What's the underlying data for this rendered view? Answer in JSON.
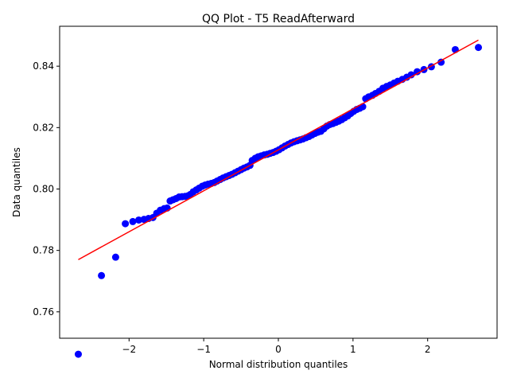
{
  "chart_data": {
    "type": "scatter",
    "title": "QQ Plot - T5 ReadAfterward",
    "xlabel": "Normal distribution quantiles",
    "ylabel": "Data quantiles",
    "xlim": [
      -2.93,
      2.93
    ],
    "ylim": [
      0.7514,
      0.853
    ],
    "xticks": [
      -2,
      -1,
      0,
      1,
      2
    ],
    "yticks": [
      0.76,
      0.78,
      0.8,
      0.82,
      0.84
    ],
    "ytick_labels": [
      "0.76",
      "0.78",
      "0.80",
      "0.82",
      "0.84"
    ],
    "grid": false,
    "legend": "none",
    "point_color": "#0000ff",
    "line_color": "#ff0000",
    "fit_line": {
      "x": [
        -2.68,
        2.68
      ],
      "y": [
        0.777,
        0.8485
      ]
    },
    "points": [
      [
        -2.68,
        0.7462
      ],
      [
        -2.37,
        0.7718
      ],
      [
        -2.18,
        0.7778
      ],
      [
        -2.05,
        0.7887
      ],
      [
        -1.95,
        0.7894
      ],
      [
        -1.87,
        0.7899
      ],
      [
        -1.8,
        0.7901
      ],
      [
        -1.74,
        0.7904
      ],
      [
        -1.68,
        0.7907
      ],
      [
        -1.63,
        0.7921
      ],
      [
        -1.58,
        0.7931
      ],
      [
        -1.53,
        0.7936
      ],
      [
        -1.49,
        0.7938
      ],
      [
        -1.45,
        0.7961
      ],
      [
        -1.41,
        0.7965
      ],
      [
        -1.37,
        0.7969
      ],
      [
        -1.33,
        0.7974
      ],
      [
        -1.29,
        0.7975
      ],
      [
        -1.25,
        0.7976
      ],
      [
        -1.21,
        0.7978
      ],
      [
        -1.18,
        0.7982
      ],
      [
        -1.14,
        0.7991
      ],
      [
        -1.1,
        0.7997
      ],
      [
        -1.06,
        0.8003
      ],
      [
        -1.02,
        0.8009
      ],
      [
        -0.98,
        0.8013
      ],
      [
        -0.94,
        0.8016
      ],
      [
        -0.9,
        0.8018
      ],
      [
        -0.86,
        0.8021
      ],
      [
        -0.82,
        0.8026
      ],
      [
        -0.78,
        0.8031
      ],
      [
        -0.74,
        0.8036
      ],
      [
        -0.7,
        0.804
      ],
      [
        -0.66,
        0.8044
      ],
      [
        -0.62,
        0.8048
      ],
      [
        -0.58,
        0.8053
      ],
      [
        -0.54,
        0.8058
      ],
      [
        -0.5,
        0.8063
      ],
      [
        -0.46,
        0.8068
      ],
      [
        -0.42,
        0.8072
      ],
      [
        -0.38,
        0.8077
      ],
      [
        -0.35,
        0.8093
      ],
      [
        -0.31,
        0.81
      ],
      [
        -0.27,
        0.8105
      ],
      [
        -0.23,
        0.8108
      ],
      [
        -0.19,
        0.8111
      ],
      [
        -0.15,
        0.8113
      ],
      [
        -0.11,
        0.8116
      ],
      [
        -0.07,
        0.8119
      ],
      [
        -0.03,
        0.8123
      ],
      [
        0.01,
        0.8128
      ],
      [
        0.05,
        0.8134
      ],
      [
        0.09,
        0.814
      ],
      [
        0.13,
        0.8145
      ],
      [
        0.17,
        0.815
      ],
      [
        0.21,
        0.8154
      ],
      [
        0.25,
        0.8157
      ],
      [
        0.29,
        0.816
      ],
      [
        0.33,
        0.8163
      ],
      [
        0.37,
        0.8167
      ],
      [
        0.41,
        0.8171
      ],
      [
        0.45,
        0.8176
      ],
      [
        0.49,
        0.8181
      ],
      [
        0.53,
        0.8185
      ],
      [
        0.57,
        0.8188
      ],
      [
        0.61,
        0.8196
      ],
      [
        0.65,
        0.8205
      ],
      [
        0.69,
        0.821
      ],
      [
        0.73,
        0.8213
      ],
      [
        0.77,
        0.8217
      ],
      [
        0.81,
        0.8221
      ],
      [
        0.85,
        0.8226
      ],
      [
        0.89,
        0.8232
      ],
      [
        0.93,
        0.8238
      ],
      [
        0.97,
        0.8246
      ],
      [
        1.01,
        0.8253
      ],
      [
        1.05,
        0.8259
      ],
      [
        1.09,
        0.8263
      ],
      [
        1.13,
        0.8268
      ],
      [
        1.17,
        0.8294
      ],
      [
        1.21,
        0.83
      ],
      [
        1.26,
        0.8305
      ],
      [
        1.3,
        0.8311
      ],
      [
        1.35,
        0.8318
      ],
      [
        1.4,
        0.8328
      ],
      [
        1.45,
        0.8334
      ],
      [
        1.5,
        0.8339
      ],
      [
        1.55,
        0.8345
      ],
      [
        1.6,
        0.8351
      ],
      [
        1.66,
        0.8357
      ],
      [
        1.72,
        0.8364
      ],
      [
        1.78,
        0.8372
      ],
      [
        1.86,
        0.8382
      ],
      [
        1.95,
        0.8389
      ],
      [
        2.05,
        0.8398
      ],
      [
        2.18,
        0.8413
      ],
      [
        2.37,
        0.8454
      ],
      [
        2.68,
        0.8461
      ]
    ]
  }
}
